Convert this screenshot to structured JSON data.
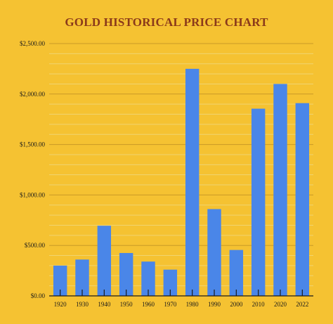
{
  "chart_data": {
    "type": "bar",
    "title": "GOLD HISTORICAL PRICE CHART",
    "xlabel": "",
    "ylabel": "",
    "categories": [
      "1920",
      "1930",
      "1940",
      "1950",
      "1960",
      "1970",
      "1980",
      "1990",
      "2000",
      "2010",
      "2020",
      "2022"
    ],
    "values": [
      300,
      360,
      695,
      425,
      340,
      260,
      2250,
      860,
      455,
      1855,
      2100,
      1910
    ],
    "ylim": [
      0,
      2500
    ],
    "ytick_labels": [
      "$0.00",
      "$500.00",
      "$1,000.00",
      "$1,500.00",
      "$2,000.00",
      "$2,500.00"
    ],
    "ytick_values": [
      0,
      500,
      1000,
      1500,
      2000,
      2500
    ],
    "minor_grid_step": 100,
    "grid": true,
    "legend": "none",
    "colors": {
      "background": "#f5c232",
      "bar": "#4a86e8",
      "title": "#8b3a1a",
      "major_grid": "#c99a26",
      "minor_grid": "#f0d470",
      "axis": "#1a1a1a"
    }
  }
}
